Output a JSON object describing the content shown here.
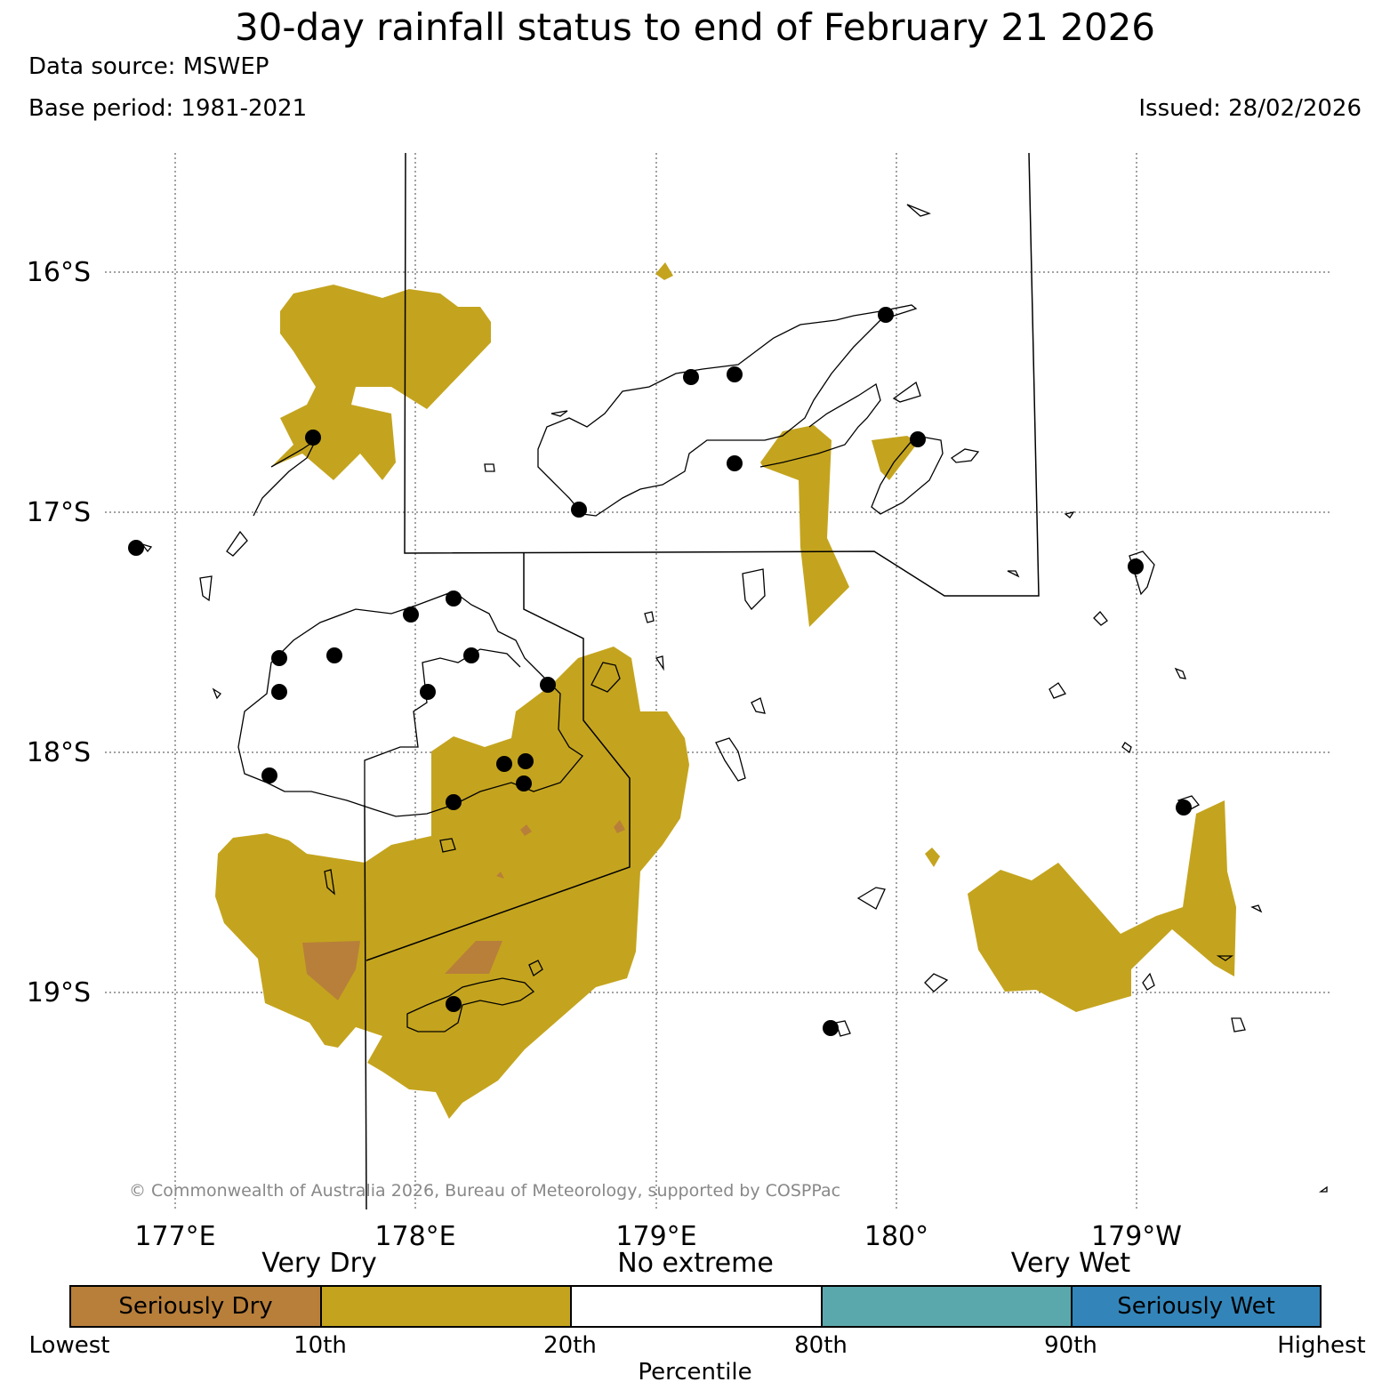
{
  "header": {
    "title": "30-day rainfall status to end of February 21 2026",
    "data_source": "Data source: MSWEP",
    "base_period": "Base period: 1981-2021",
    "issued": "Issued: 28/02/2026"
  },
  "map": {
    "lat_labels": [
      "16°S",
      "17°S",
      "18°S",
      "19°S"
    ],
    "lon_labels": [
      "177°E",
      "178°E",
      "179°E",
      "180°",
      "179°W"
    ],
    "copyright": "© Commonwealth of Australia 2026, Bureau of Meteorology, supported by COSPPac",
    "colors": {
      "seriously_dry": "#b87f3a",
      "very_dry": "#c4a41e",
      "no_extreme": "#ffffff",
      "very_wet": "#5ba8ac",
      "seriously_wet": "#3385b9",
      "station": "#000000",
      "coast": "#000000"
    }
  },
  "legend": {
    "groups": [
      "Very Dry",
      "No extreme",
      "Very Wet"
    ],
    "boxes": [
      "Seriously Dry",
      "",
      "",
      "",
      "Seriously Wet"
    ],
    "ticks": [
      "Lowest",
      "10th",
      "20th",
      "80th",
      "90th",
      "Highest"
    ],
    "caption": "Percentile"
  }
}
